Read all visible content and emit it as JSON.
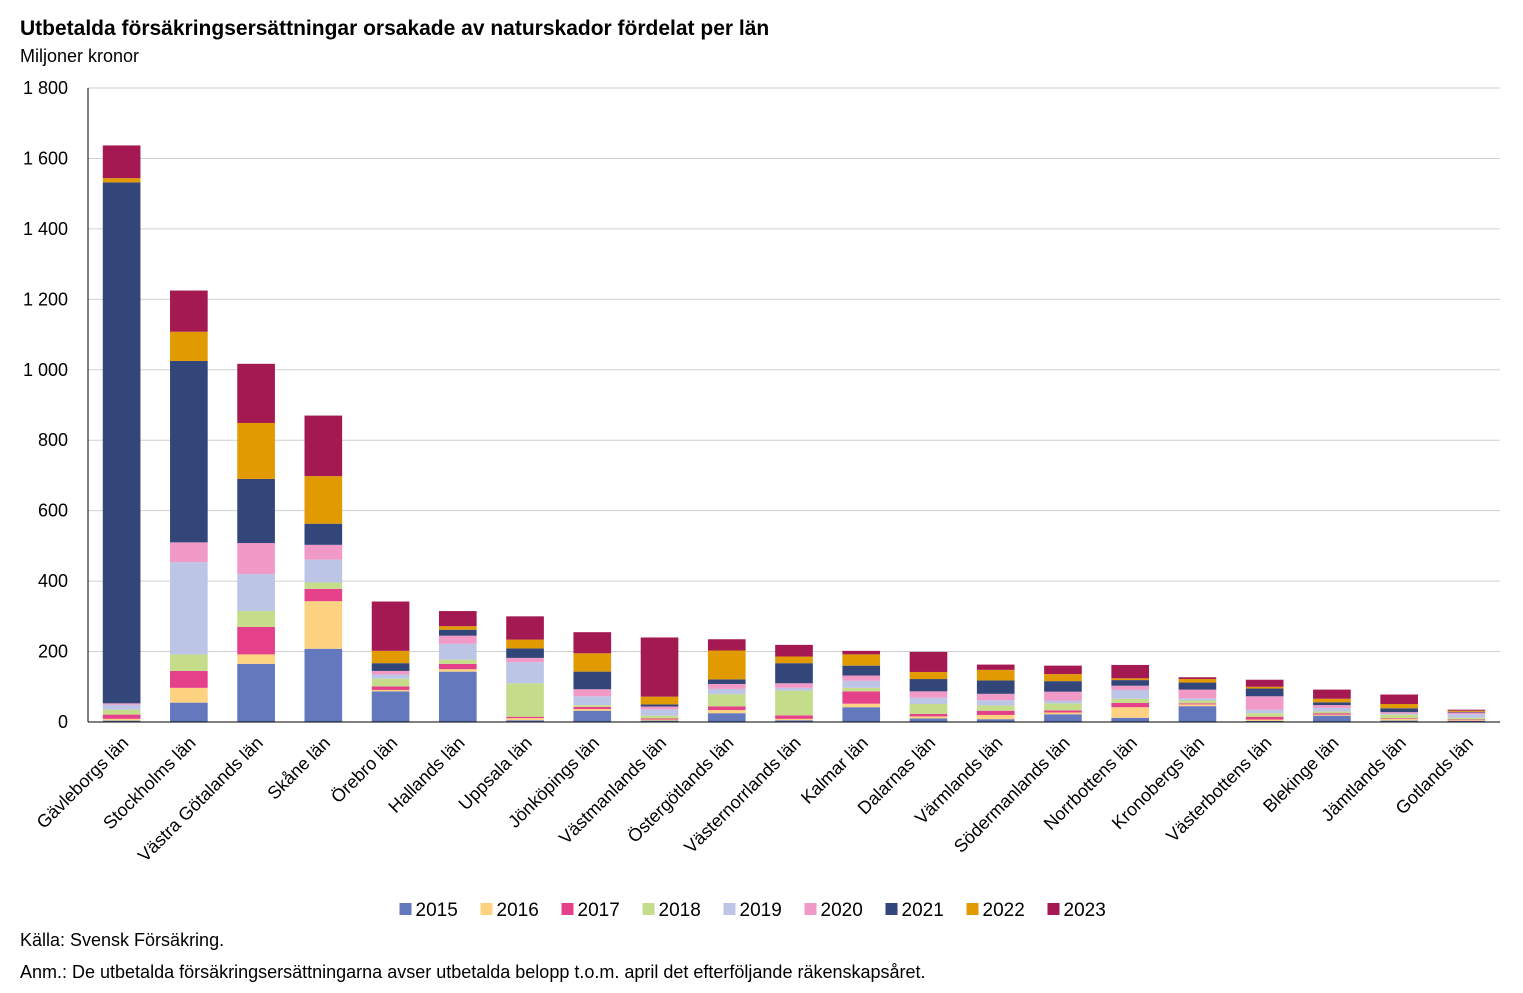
{
  "chart_data": {
    "type": "bar",
    "stacked": true,
    "title": "Utbetalda försäkringsersättningar orsakade av naturskador fördelat per län",
    "subtitle": "Miljoner kronor",
    "ylim": [
      0,
      1800
    ],
    "yticks": [
      0,
      200,
      400,
      600,
      800,
      1000,
      1200,
      1400,
      1600,
      1800
    ],
    "ytick_labels": [
      "0",
      "200",
      "400",
      "600",
      "800",
      "1 000",
      "1 200",
      "1 400",
      "1 600",
      "1 800"
    ],
    "grid": true,
    "legend_position": "bottom",
    "categories": [
      "Gävleborgs län",
      "Stockholms län",
      "Västra Götalands län",
      "Skåne län",
      "Örebro län",
      "Hallands län",
      "Uppsala län",
      "Jönköpings län",
      "Västmanlands län",
      "Östergötlands län",
      "Västernorrlands län",
      "Kalmar län",
      "Dalarnas län",
      "Värmlands län",
      "Södermanlands län",
      "Norrbottens län",
      "Kronobergs län",
      "Västerbottens län",
      "Blekinge län",
      "Jämtlands län",
      "Gotlands län"
    ],
    "series": [
      {
        "name": "2015",
        "color": "#6478be",
        "values": [
          4,
          55,
          165,
          208,
          87,
          143,
          5,
          32,
          4,
          25,
          5,
          42,
          10,
          8,
          22,
          12,
          45,
          3,
          18,
          4,
          3
        ]
      },
      {
        "name": "2016",
        "color": "#fdd382",
        "values": [
          5,
          42,
          27,
          135,
          4,
          7,
          6,
          5,
          3,
          9,
          4,
          10,
          6,
          12,
          5,
          30,
          5,
          4,
          3,
          5,
          2
        ]
      },
      {
        "name": "2017",
        "color": "#e5408a",
        "values": [
          12,
          48,
          78,
          35,
          10,
          15,
          4,
          6,
          3,
          10,
          10,
          35,
          7,
          12,
          6,
          12,
          3,
          8,
          4,
          2,
          2
        ]
      },
      {
        "name": "2018",
        "color": "#c5dd8b",
        "values": [
          14,
          47,
          45,
          18,
          22,
          12,
          95,
          5,
          8,
          35,
          70,
          10,
          28,
          15,
          20,
          12,
          8,
          10,
          5,
          10,
          5
        ]
      },
      {
        "name": "2019",
        "color": "#bdc5e6",
        "values": [
          14,
          262,
          105,
          65,
          12,
          45,
          60,
          25,
          18,
          15,
          8,
          20,
          18,
          15,
          8,
          25,
          6,
          10,
          10,
          3,
          10
        ]
      },
      {
        "name": "2020",
        "color": "#f29ac7",
        "values": [
          4,
          56,
          88,
          42,
          10,
          23,
          12,
          20,
          8,
          14,
          13,
          15,
          18,
          18,
          25,
          12,
          25,
          38,
          8,
          4,
          5
        ]
      },
      {
        "name": "2021",
        "color": "#33467a",
        "values": [
          1479,
          515,
          182,
          60,
          22,
          17,
          27,
          50,
          6,
          13,
          57,
          28,
          35,
          38,
          30,
          16,
          20,
          22,
          8,
          11,
          2
        ]
      },
      {
        "name": "2022",
        "color": "#e19b00",
        "values": [
          12,
          83,
          159,
          135,
          35,
          10,
          25,
          52,
          22,
          82,
          19,
          32,
          20,
          30,
          20,
          5,
          10,
          5,
          10,
          12,
          3
        ]
      },
      {
        "name": "2023",
        "color": "#a51952",
        "values": [
          93,
          117,
          168,
          172,
          140,
          43,
          66,
          60,
          168,
          32,
          33,
          10,
          57,
          15,
          24,
          38,
          5,
          20,
          26,
          27,
          3
        ]
      }
    ]
  },
  "footer": {
    "source": "Källa: Svensk Försäkring.",
    "note": "Anm.: De utbetalda försäkringsersättningarna avser utbetalda belopp t.o.m. april det efterföljande räkenskapsåret."
  }
}
